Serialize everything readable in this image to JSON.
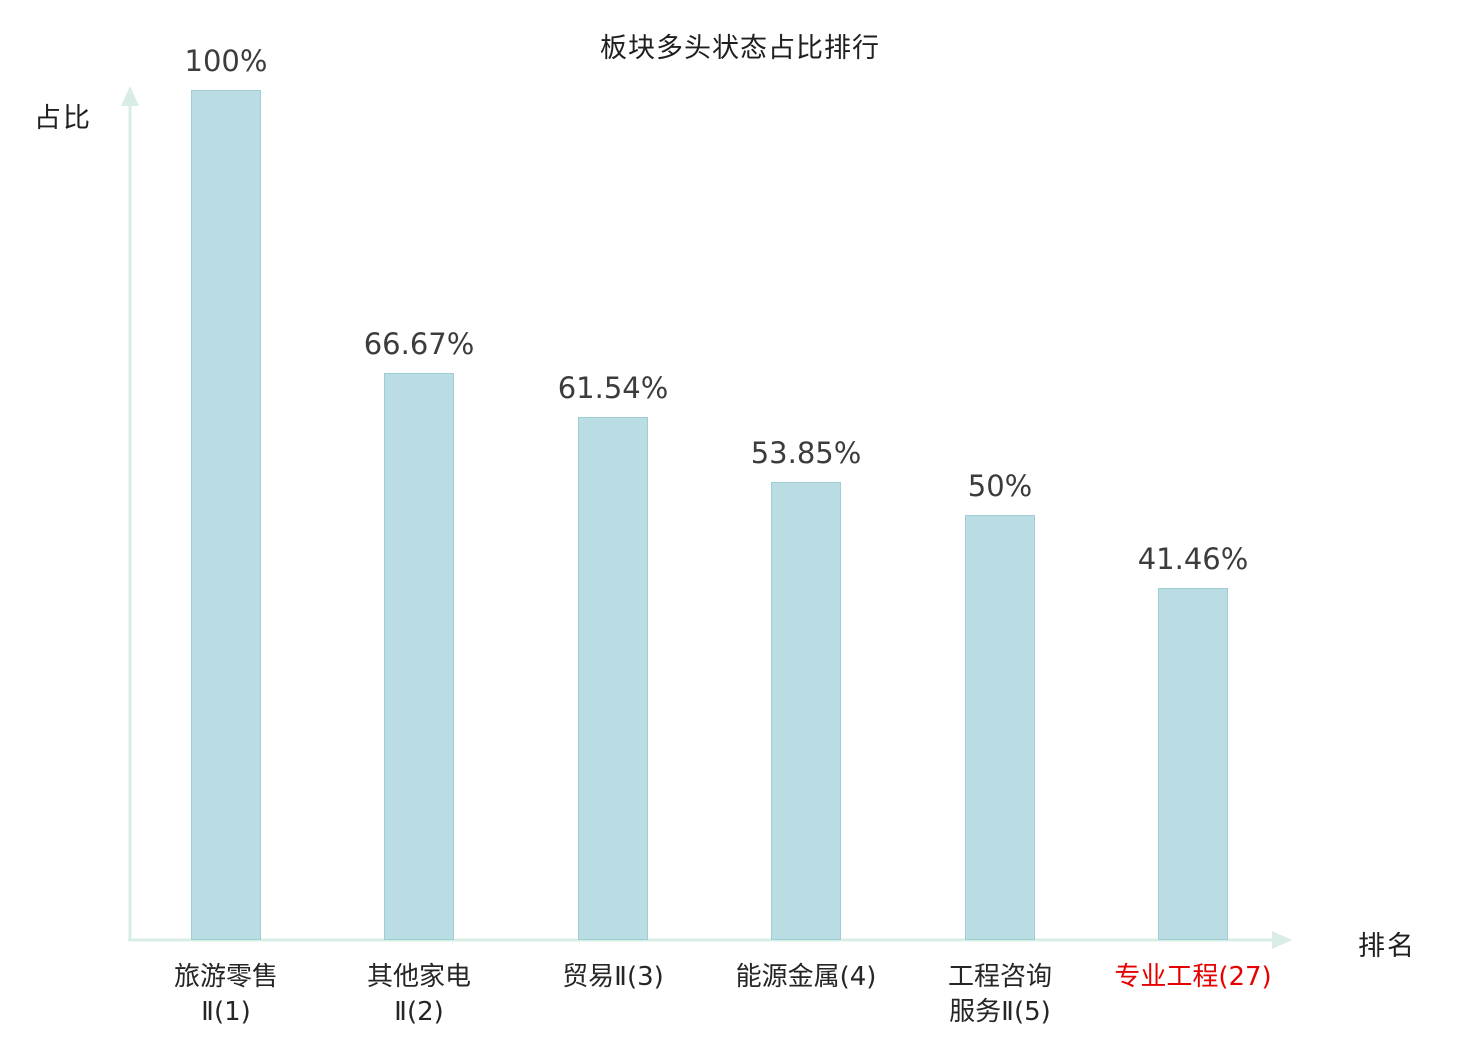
{
  "title": "板块多头状态占比排行",
  "y_axis_label": "占比",
  "x_axis_label": "排名",
  "colors": {
    "bar_fill": "#b9dde3",
    "bar_border": "#9dcdd5",
    "axis": "#d8eee5",
    "value_label": "#3c3c3c",
    "category_label": "#262626",
    "highlight_category": "#e60000"
  },
  "chart_data": {
    "type": "bar",
    "title": "板块多头状态占比排行",
    "xlabel": "排名",
    "ylabel": "占比",
    "ylim": [
      0,
      100
    ],
    "grid": false,
    "legend": "none",
    "categories": [
      "旅游零售Ⅱ(1)",
      "其他家电Ⅱ(2)",
      "贸易Ⅱ(3)",
      "能源金属(4)",
      "工程咨询服务Ⅱ(5)",
      "专业工程(27)"
    ],
    "values": [
      100,
      66.67,
      61.54,
      53.85,
      50,
      41.46
    ],
    "bars": [
      {
        "value": 100,
        "value_label": "100%",
        "label_line1": "旅游零售",
        "label_line2": "Ⅱ(1)",
        "highlight": false
      },
      {
        "value": 66.67,
        "value_label": "66.67%",
        "label_line1": "其他家电",
        "label_line2": "Ⅱ(2)",
        "highlight": false
      },
      {
        "value": 61.54,
        "value_label": "61.54%",
        "label_line1": "贸易Ⅱ(3)",
        "label_line2": "",
        "highlight": false
      },
      {
        "value": 53.85,
        "value_label": "53.85%",
        "label_line1": "能源金属(4)",
        "label_line2": "",
        "highlight": false
      },
      {
        "value": 50,
        "value_label": "50%",
        "label_line1": "工程咨询",
        "label_line2": "服务Ⅱ(5)",
        "highlight": false
      },
      {
        "value": 41.46,
        "value_label": "41.46%",
        "label_line1": "专业工程(27)",
        "label_line2": "",
        "highlight": true
      }
    ]
  }
}
